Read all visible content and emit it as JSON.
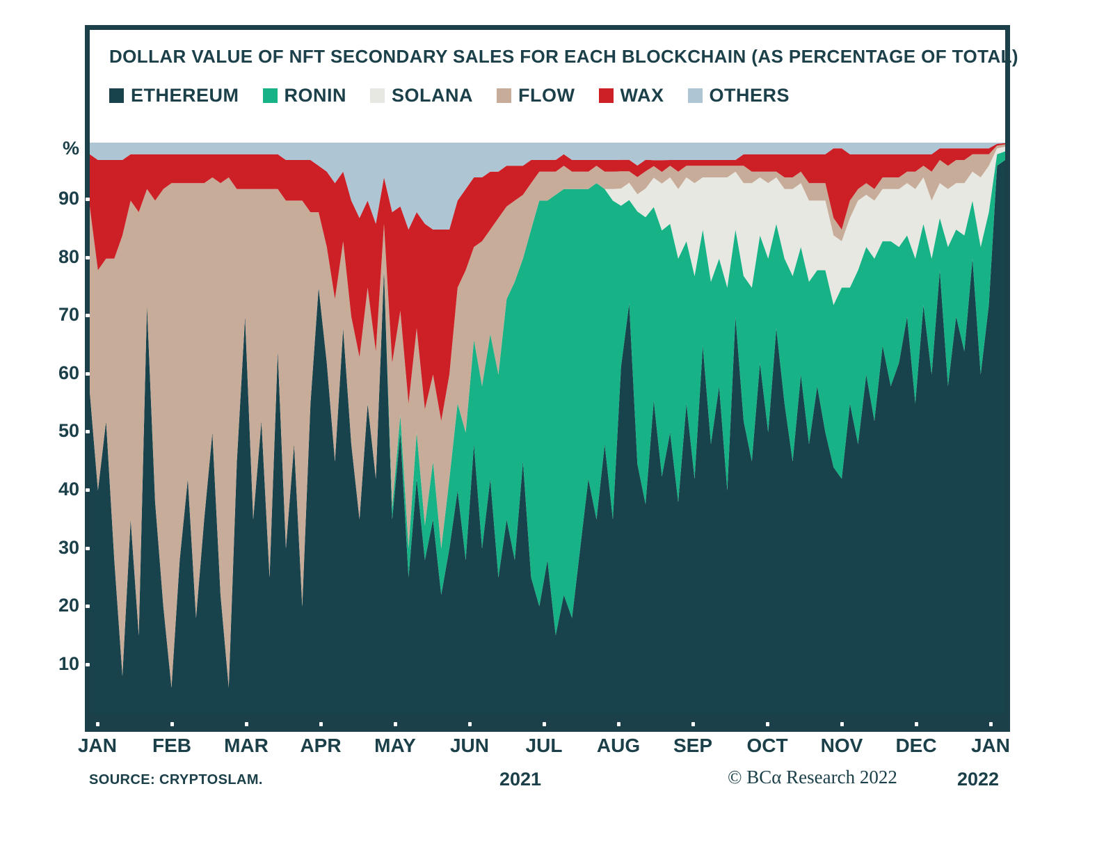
{
  "title": "DOLLAR VALUE OF NFT SECONDARY SALES FOR EACH BLOCKCHAIN (AS PERCENTAGE OF TOTAL)",
  "yaxis": {
    "unit_label": "%",
    "ticks": [
      90,
      80,
      70,
      60,
      50,
      40,
      30,
      20,
      10
    ]
  },
  "xaxis": {
    "labels": [
      "JAN",
      "FEB",
      "MAR",
      "APR",
      "MAY",
      "JUN",
      "JUL",
      "AUG",
      "SEP",
      "OCT",
      "NOV",
      "DEC",
      "JAN"
    ]
  },
  "footer": {
    "source": "SOURCE: CRYPTOSLAM.",
    "year_left": "2021",
    "credit": "© BCα Research 2022",
    "year_right": "2022"
  },
  "chart_data": {
    "type": "area",
    "stacked": true,
    "units": "percent of total (normalized to 100)",
    "title": "DOLLAR VALUE OF NFT SECONDARY SALES FOR EACH BLOCKCHAIN (AS PERCENTAGE OF TOTAL)",
    "x_start": "JAN 2021",
    "x_end": "JAN 2022",
    "x_note": "113 samples, ~3.4-day spacing, 9 samples per month",
    "ylim": [
      0,
      100
    ],
    "legend_position": "top",
    "grid": false,
    "frame_color": "#1C4049",
    "series": [
      {
        "name": "ETHEREUM",
        "color": "#18434C",
        "values": [
          57,
          40,
          52,
          28,
          8,
          35,
          15,
          72,
          38,
          20,
          6,
          28,
          42,
          18,
          35,
          50,
          22,
          6,
          45,
          70,
          35,
          52,
          25,
          64,
          30,
          48,
          20,
          55,
          75,
          62,
          45,
          68,
          48,
          35,
          55,
          42,
          78,
          35,
          50,
          25,
          42,
          28,
          35,
          22,
          30,
          40,
          28,
          48,
          30,
          42,
          25,
          35,
          28,
          45,
          25,
          20,
          28,
          15,
          22,
          18,
          30,
          42,
          35,
          48,
          35,
          62,
          73,
          45,
          38,
          55,
          42,
          50,
          38,
          55,
          42,
          65,
          48,
          58,
          40,
          70,
          52,
          45,
          62,
          50,
          68,
          55,
          45,
          60,
          48,
          58,
          50,
          44,
          42,
          55,
          48,
          60,
          52,
          65,
          58,
          62,
          70,
          55,
          72,
          60,
          78,
          58,
          70,
          64,
          80,
          60,
          72,
          96,
          97
        ]
      },
      {
        "name": "RONIN",
        "color": "#17B286",
        "values": [
          0,
          0,
          0,
          0,
          0,
          0,
          0,
          0,
          0,
          0,
          0,
          0,
          0,
          0,
          0,
          0,
          0,
          0,
          0,
          0,
          0,
          0,
          0,
          0,
          0,
          0,
          0,
          0,
          0,
          0,
          0,
          0,
          0,
          0,
          0,
          0,
          0,
          2,
          3,
          5,
          8,
          6,
          10,
          8,
          12,
          15,
          22,
          18,
          28,
          25,
          35,
          38,
          48,
          35,
          60,
          70,
          62,
          76,
          70,
          74,
          62,
          50,
          58,
          44,
          55,
          28,
          18,
          44,
          50,
          33,
          42,
          36,
          42,
          28,
          35,
          20,
          28,
          22,
          35,
          15,
          25,
          30,
          22,
          30,
          18,
          25,
          32,
          22,
          28,
          20,
          28,
          28,
          33,
          20,
          30,
          22,
          28,
          18,
          25,
          20,
          14,
          25,
          14,
          20,
          9,
          24,
          15,
          20,
          10,
          22,
          16,
          2,
          1.5
        ]
      },
      {
        "name": "SOLANA",
        "color": "#E8E8E3",
        "values": [
          0,
          0,
          0,
          0,
          0,
          0,
          0,
          0,
          0,
          0,
          0,
          0,
          0,
          0,
          0,
          0,
          0,
          0,
          0,
          0,
          0,
          0,
          0,
          0,
          0,
          0,
          0,
          0,
          0,
          0,
          0,
          0,
          0,
          0,
          0,
          0,
          0,
          0,
          0,
          0,
          0,
          0,
          0,
          0,
          0,
          0,
          0,
          0,
          0,
          0,
          0,
          0,
          0,
          0,
          0,
          0,
          0,
          0,
          0,
          0,
          0,
          0,
          0,
          0,
          2,
          3,
          3,
          3,
          5,
          5,
          8,
          8,
          12,
          11,
          16,
          9,
          18,
          14,
          19,
          10,
          16,
          18,
          10,
          13,
          8,
          12,
          15,
          11,
          14,
          12,
          12,
          12,
          8,
          12,
          12,
          9,
          10,
          9,
          9,
          10,
          9,
          12,
          8,
          10,
          6,
          10,
          8,
          9,
          5,
          12,
          8,
          1,
          0.8
        ]
      },
      {
        "name": "FLOW",
        "color": "#C8AC9A",
        "values": [
          32,
          38,
          28,
          52,
          76,
          55,
          73,
          20,
          52,
          72,
          87,
          65,
          51,
          75,
          58,
          44,
          71,
          88,
          47,
          22,
          57,
          40,
          67,
          28,
          60,
          42,
          70,
          33,
          13,
          20,
          28,
          15,
          22,
          28,
          20,
          22,
          8,
          25,
          18,
          25,
          18,
          20,
          15,
          22,
          18,
          20,
          28,
          16,
          25,
          18,
          27,
          16,
          14,
          11,
          8,
          5,
          5,
          4,
          4,
          3,
          3,
          3,
          3,
          3,
          3,
          3,
          2,
          3,
          3,
          2,
          2,
          2,
          3,
          2,
          3,
          2,
          2,
          2,
          2,
          1,
          3,
          2,
          1,
          2,
          1,
          2,
          2,
          2,
          3,
          3,
          3,
          3,
          2,
          3,
          2,
          2,
          2,
          2,
          2,
          2,
          2,
          3,
          2,
          5,
          4,
          4,
          4,
          4,
          3,
          4,
          2,
          0.5,
          0.4
        ]
      },
      {
        "name": "WAX",
        "color": "#CC2026",
        "values": [
          9,
          19,
          17,
          17,
          13,
          8,
          10,
          6,
          8,
          6,
          5,
          5,
          5,
          5,
          5,
          4,
          5,
          4,
          6,
          6,
          6,
          6,
          6,
          6,
          7,
          7,
          7,
          9,
          8,
          13,
          20,
          12,
          20,
          24,
          15,
          22,
          8,
          26,
          18,
          30,
          20,
          32,
          25,
          33,
          25,
          15,
          14,
          12,
          11,
          10,
          8,
          7,
          6,
          5,
          4,
          2,
          2,
          2,
          2,
          2,
          2,
          2,
          1,
          2,
          2,
          2,
          2,
          2,
          2,
          1,
          2,
          1,
          2,
          1,
          1,
          1,
          1,
          1,
          1,
          1,
          2,
          3,
          3,
          3,
          3,
          4,
          4,
          3,
          5,
          5,
          5,
          12,
          14,
          8,
          6,
          5,
          6,
          4,
          4,
          4,
          3,
          3,
          2,
          3,
          2,
          3,
          2,
          2,
          1,
          1,
          1,
          0.3,
          0.2
        ]
      },
      {
        "name": "OTHERS",
        "color": "#AEC5D4",
        "values": [
          2,
          3,
          3,
          3,
          3,
          2,
          2,
          2,
          2,
          2,
          2,
          2,
          2,
          2,
          2,
          2,
          2,
          2,
          2,
          2,
          2,
          2,
          2,
          2,
          3,
          3,
          3,
          3,
          4,
          5,
          7,
          5,
          10,
          13,
          10,
          14,
          6,
          12,
          11,
          15,
          12,
          14,
          15,
          15,
          15,
          10,
          8,
          6,
          6,
          5,
          5,
          4,
          4,
          4,
          3,
          3,
          3,
          3,
          2,
          3,
          3,
          3,
          3,
          3,
          3,
          3,
          3,
          4,
          3,
          3,
          3,
          3,
          3,
          3,
          3,
          3,
          3,
          3,
          3,
          3,
          2,
          2,
          2,
          2,
          2,
          2,
          2,
          2,
          2,
          2,
          2,
          1,
          1,
          2,
          2,
          2,
          2,
          2,
          2,
          2,
          2,
          2,
          2,
          2,
          1,
          1,
          1,
          1,
          1,
          1,
          1,
          0.2,
          0.1
        ]
      }
    ]
  }
}
